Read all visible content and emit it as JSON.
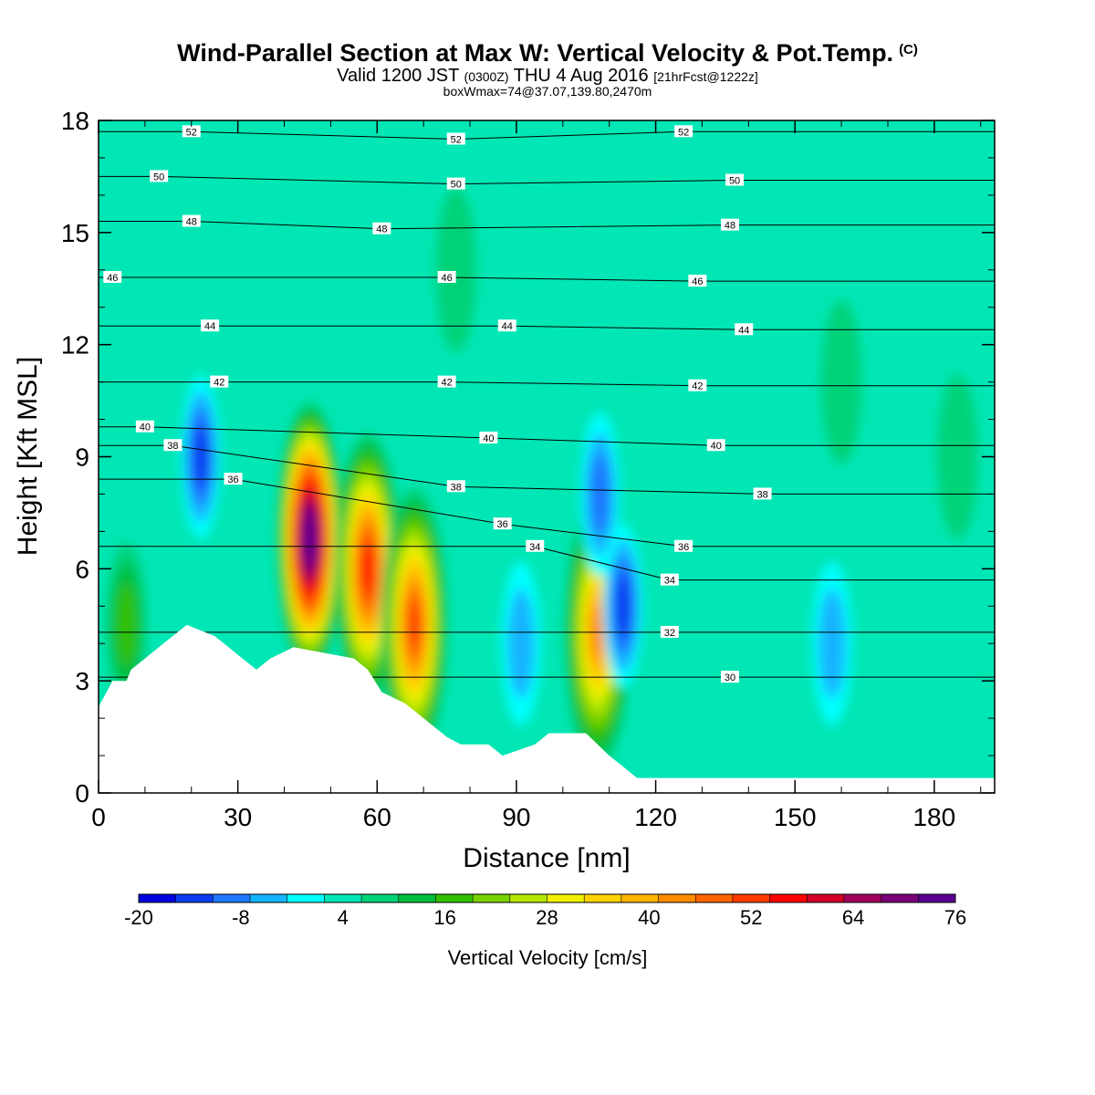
{
  "header": {
    "title": "Wind-Parallel Section at Max W: Vertical Velocity & Pot.Temp.",
    "copyright": "(C)",
    "valid_prefix": "Valid 1200 JST",
    "valid_utc": "(0300Z)",
    "valid_date": "THU 4 Aug 2016",
    "forecast": "[21hrFcst@1222z]",
    "box_info": "boxWmax=74@37.07,139.80,2470m"
  },
  "chart_data": {
    "type": "heatmap",
    "xlabel": "Distance [nm]",
    "ylabel": "Height [Kft MSL]",
    "xlim": [
      0,
      193
    ],
    "ylim": [
      0,
      18
    ],
    "x_ticks": [
      0,
      30,
      60,
      90,
      120,
      150,
      180
    ],
    "y_ticks": [
      0,
      3,
      6,
      9,
      12,
      15,
      18
    ],
    "colorbar": {
      "label": "Vertical Velocity [cm/s]",
      "min": -20,
      "max": 76,
      "step": 4,
      "tick_labels": [
        "-20",
        "-8",
        "4",
        "16",
        "28",
        "40",
        "52",
        "64",
        "76"
      ],
      "colors": [
        "#0000e0",
        "#0a3cf0",
        "#1e78ff",
        "#14b4ff",
        "#00ffff",
        "#00e6b4",
        "#00d278",
        "#00be3c",
        "#30c000",
        "#78d200",
        "#b4e600",
        "#f0f000",
        "#ffd200",
        "#ffb400",
        "#ff8c00",
        "#ff6400",
        "#ff3c00",
        "#ff0000",
        "#d20028",
        "#a0005a",
        "#780078",
        "#5a0090"
      ]
    },
    "background_value_cm_s": 0,
    "terrain_kft": [
      {
        "x": 0,
        "h": 2.3
      },
      {
        "x": 3,
        "h": 3.0
      },
      {
        "x": 6,
        "h": 3.0
      },
      {
        "x": 7,
        "h": 3.3
      },
      {
        "x": 10,
        "h": 3.6
      },
      {
        "x": 13,
        "h": 3.9
      },
      {
        "x": 16,
        "h": 4.2
      },
      {
        "x": 19,
        "h": 4.5
      },
      {
        "x": 25,
        "h": 4.2
      },
      {
        "x": 28,
        "h": 3.9
      },
      {
        "x": 31,
        "h": 3.6
      },
      {
        "x": 34,
        "h": 3.3
      },
      {
        "x": 37,
        "h": 3.6
      },
      {
        "x": 42,
        "h": 3.9
      },
      {
        "x": 55,
        "h": 3.6
      },
      {
        "x": 58,
        "h": 3.3
      },
      {
        "x": 61,
        "h": 2.7
      },
      {
        "x": 66,
        "h": 2.4
      },
      {
        "x": 69,
        "h": 2.1
      },
      {
        "x": 72,
        "h": 1.8
      },
      {
        "x": 75,
        "h": 1.5
      },
      {
        "x": 78,
        "h": 1.3
      },
      {
        "x": 84,
        "h": 1.3
      },
      {
        "x": 87,
        "h": 1.0
      },
      {
        "x": 94,
        "h": 1.3
      },
      {
        "x": 97,
        "h": 1.6
      },
      {
        "x": 105,
        "h": 1.6
      },
      {
        "x": 110,
        "h": 1.0
      },
      {
        "x": 113,
        "h": 0.7
      },
      {
        "x": 116,
        "h": 0.4
      },
      {
        "x": 119,
        "h": 0.4
      },
      {
        "x": 193,
        "h": 0.4
      }
    ],
    "vertical_velocity_features": [
      {
        "x": 45.5,
        "z": 6.8,
        "w_cm_s": 74
      },
      {
        "x": 58,
        "z": 6.0,
        "w_cm_s": 50
      },
      {
        "x": 68,
        "z": 4.5,
        "w_cm_s": 44
      },
      {
        "x": 107.5,
        "z": 4.3,
        "w_cm_s": 38
      },
      {
        "x": 22,
        "z": 9.0,
        "w_cm_s": -18
      },
      {
        "x": 113,
        "z": 5.0,
        "w_cm_s": -16
      },
      {
        "x": 91,
        "z": 4.0,
        "w_cm_s": -10
      },
      {
        "x": 108,
        "z": 8.0,
        "w_cm_s": -12
      },
      {
        "x": 158,
        "z": 4.0,
        "w_cm_s": -10
      },
      {
        "x": 6,
        "z": 4.5,
        "w_cm_s": 14
      },
      {
        "x": 160,
        "z": 11.0,
        "w_cm_s": 6
      },
      {
        "x": 77,
        "z": 14.0,
        "w_cm_s": 6
      },
      {
        "x": 185,
        "z": 9.0,
        "w_cm_s": 5
      }
    ],
    "theta_contours_c": [
      {
        "value": 52,
        "labels": [
          {
            "x": 20,
            "z": 17.7
          },
          {
            "x": 77,
            "z": 17.5
          },
          {
            "x": 126,
            "z": 17.7
          }
        ]
      },
      {
        "value": 50,
        "labels": [
          {
            "x": 13,
            "z": 16.5
          },
          {
            "x": 77,
            "z": 16.3
          },
          {
            "x": 137,
            "z": 16.4
          }
        ]
      },
      {
        "value": 48,
        "labels": [
          {
            "x": 20,
            "z": 15.3
          },
          {
            "x": 61,
            "z": 15.1
          },
          {
            "x": 136,
            "z": 15.2
          }
        ]
      },
      {
        "value": 46,
        "labels": [
          {
            "x": 3,
            "z": 13.8
          },
          {
            "x": 75,
            "z": 13.8
          },
          {
            "x": 129,
            "z": 13.7
          }
        ]
      },
      {
        "value": 44,
        "labels": [
          {
            "x": 24,
            "z": 12.5
          },
          {
            "x": 88,
            "z": 12.5
          },
          {
            "x": 139,
            "z": 12.4
          }
        ]
      },
      {
        "value": 42,
        "labels": [
          {
            "x": 26,
            "z": 11.0
          },
          {
            "x": 75,
            "z": 11.0
          },
          {
            "x": 129,
            "z": 10.9
          }
        ]
      },
      {
        "value": 40,
        "labels": [
          {
            "x": 10,
            "z": 9.8
          },
          {
            "x": 84,
            "z": 9.5
          },
          {
            "x": 133,
            "z": 9.3
          }
        ]
      },
      {
        "value": 38,
        "labels": [
          {
            "x": 16,
            "z": 9.3
          },
          {
            "x": 77,
            "z": 8.2
          },
          {
            "x": 143,
            "z": 8.0
          }
        ]
      },
      {
        "value": 36,
        "labels": [
          {
            "x": 29,
            "z": 8.4
          },
          {
            "x": 87,
            "z": 7.2
          },
          {
            "x": 126,
            "z": 6.6
          }
        ]
      },
      {
        "value": 34,
        "labels": [
          {
            "x": 94,
            "z": 6.6
          },
          {
            "x": 123,
            "z": 5.7
          }
        ]
      },
      {
        "value": 32,
        "labels": [
          {
            "x": 123,
            "z": 4.3
          }
        ]
      },
      {
        "value": 30,
        "labels": [
          {
            "x": 136,
            "z": 3.1
          }
        ]
      }
    ],
    "label_strings": {
      "52": "52",
      "50": "50",
      "48": "48",
      "46": "46",
      "44": "44",
      "42": "42",
      "40": "40",
      "38": "38",
      "36": "36",
      "34": "34",
      "32": "32",
      "30": "30"
    },
    "grid": false
  }
}
